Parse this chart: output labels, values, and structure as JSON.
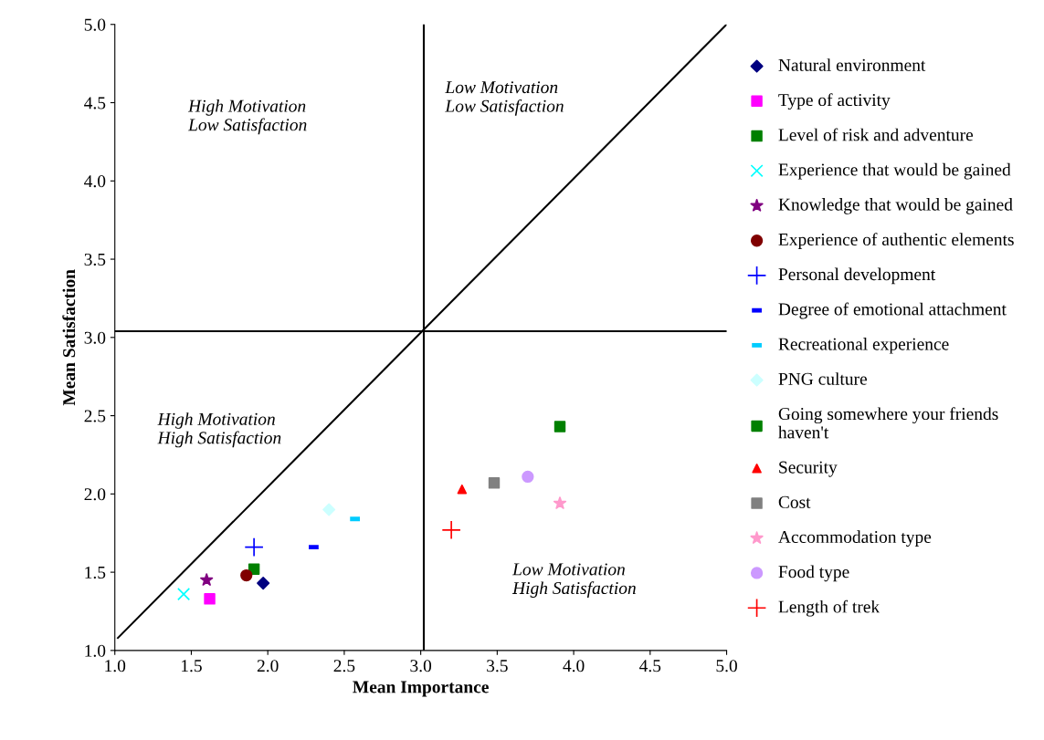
{
  "chart_data": {
    "type": "scatter",
    "xlabel": "Mean Importance",
    "ylabel": "Mean Satisfaction",
    "xlim": [
      1.0,
      5.0
    ],
    "ylim": [
      1.0,
      5.0
    ],
    "xticks": [
      {
        "value": 1.0,
        "label": "1.0"
      },
      {
        "value": 1.5,
        "label": "1.5"
      },
      {
        "value": 2.0,
        "label": "2.0"
      },
      {
        "value": 2.5,
        "label": "2.5"
      },
      {
        "value": 3.0,
        "label": "3.0"
      },
      {
        "value": 3.5,
        "label": "3.5"
      },
      {
        "value": 4.0,
        "label": "4.0"
      },
      {
        "value": 4.5,
        "label": "4.5"
      },
      {
        "value": 5.0,
        "label": "5.0"
      }
    ],
    "yticks": [
      {
        "value": 1.0,
        "label": "1.0"
      },
      {
        "value": 1.5,
        "label": "1.5"
      },
      {
        "value": 2.0,
        "label": "2.0"
      },
      {
        "value": 2.5,
        "label": "2.5"
      },
      {
        "value": 3.0,
        "label": "3.0"
      },
      {
        "value": 3.5,
        "label": "3.5"
      },
      {
        "value": 4.0,
        "label": "4.0"
      },
      {
        "value": 4.5,
        "label": "4.5"
      },
      {
        "value": 5.0,
        "label": "5.0"
      }
    ],
    "grid": false,
    "legend": "right",
    "annotations": [
      "High Motivation\nLow Satisfaction",
      "Low Motivation\nLow Satisfaction",
      "High Motivation\nHigh Satisfaction",
      "Low Motivation\nHigh Satisfaction"
    ],
    "ref_lines": [
      {
        "axis": "x",
        "value": 3.02,
        "color": "#000000"
      },
      {
        "axis": "y",
        "value": 3.04,
        "color": "#000000"
      }
    ],
    "series": [
      {
        "name": "Natural environment",
        "color": "#000080",
        "marker": "diamond",
        "x": [
          1.97
        ],
        "values": [
          1.43
        ]
      },
      {
        "name": "Type of activity",
        "color": "#ff00ff",
        "marker": "square",
        "x": [
          1.62
        ],
        "values": [
          1.33
        ]
      },
      {
        "name": "Level of risk and adventure",
        "color": "#008000",
        "marker": "square",
        "x": [
          1.91
        ],
        "values": [
          1.52
        ]
      },
      {
        "name": "Experience that would be gained",
        "color": "#00ffff",
        "marker": "cross",
        "x": [
          1.45
        ],
        "values": [
          1.36
        ]
      },
      {
        "name": "Knowledge that would be gained",
        "color": "#800080",
        "marker": "star",
        "x": [
          1.6
        ],
        "values": [
          1.45
        ]
      },
      {
        "name": "Experience of authentic elements",
        "color": "#800000",
        "marker": "circle",
        "x": [
          1.86
        ],
        "values": [
          1.48
        ]
      },
      {
        "name": "Personal development",
        "color": "#0000ff",
        "marker": "plus",
        "x": [
          1.91
        ],
        "values": [
          1.66
        ]
      },
      {
        "name": "Degree of emotional attachment",
        "color": "#0000ff",
        "x": [
          2.3
        ],
        "values": [
          1.66
        ]
      },
      {
        "name": "Recreational experience",
        "color": "#00ccff",
        "x": [
          2.57
        ],
        "values": [
          1.84
        ]
      },
      {
        "name": "PNG culture",
        "color": "#ccffff",
        "marker": "diamond",
        "x": [
          2.4
        ],
        "values": [
          1.9
        ]
      },
      {
        "name": "Going somewhere your friends\nhaven't",
        "color": "#008000",
        "marker": "square",
        "x": [
          3.91
        ],
        "values": [
          2.43
        ]
      },
      {
        "name": "Security",
        "color": "#ff0000",
        "marker": "triangle",
        "x": [
          3.27
        ],
        "values": [
          2.03
        ]
      },
      {
        "name": "Cost",
        "color": "#808080",
        "marker": "square",
        "x": [
          3.48
        ],
        "values": [
          2.07
        ]
      },
      {
        "name": "Accommodation type",
        "color": "#ff99cc",
        "marker": "star",
        "x": [
          3.91
        ],
        "values": [
          1.94
        ]
      },
      {
        "name": "Food type",
        "color": "#cc99ff",
        "marker": "circle",
        "x": [
          3.7
        ],
        "values": [
          2.11
        ]
      },
      {
        "name": "Length of trek",
        "color": "#ff0000",
        "marker": "plus",
        "x": [
          3.2
        ],
        "values": [
          1.77
        ]
      },
      {
        "type": "line",
        "color": "#000000",
        "x": [
          1.02,
          5.0
        ],
        "values": [
          1.08,
          5.0
        ]
      }
    ]
  }
}
